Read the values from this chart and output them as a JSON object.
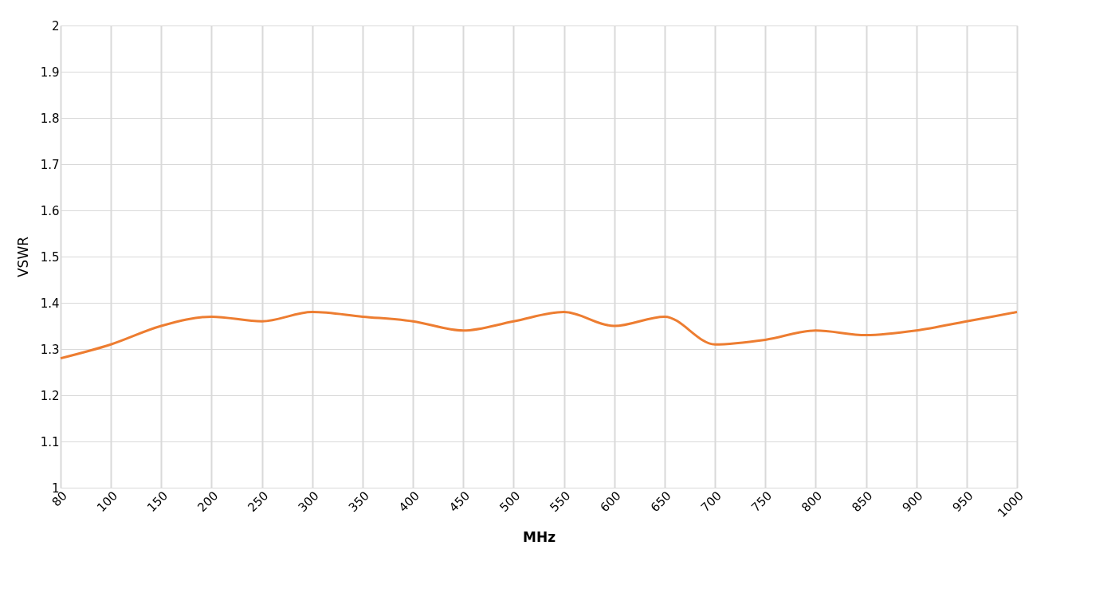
{
  "chart_data": {
    "type": "line",
    "xlabel": "MHz",
    "ylabel": "VSWR",
    "categories": [
      "80",
      "100",
      "150",
      "200",
      "250",
      "300",
      "350",
      "400",
      "450",
      "500",
      "550",
      "600",
      "650",
      "700",
      "750",
      "800",
      "850",
      "900",
      "950",
      "1000"
    ],
    "series": [
      {
        "color": "#ed7d31",
        "values": [
          1.28,
          1.31,
          1.35,
          1.37,
          1.36,
          1.38,
          1.37,
          1.36,
          1.34,
          1.36,
          1.38,
          1.35,
          1.37,
          1.31,
          1.32,
          1.34,
          1.33,
          1.34,
          1.36,
          1.38
        ]
      }
    ],
    "ylim": [
      1,
      2
    ],
    "yticks": [
      1,
      1.1,
      1.2,
      1.3,
      1.4,
      1.5,
      1.6,
      1.7,
      1.8,
      1.9,
      2
    ],
    "grid": true,
    "marker": "none",
    "line_style": "solid"
  }
}
